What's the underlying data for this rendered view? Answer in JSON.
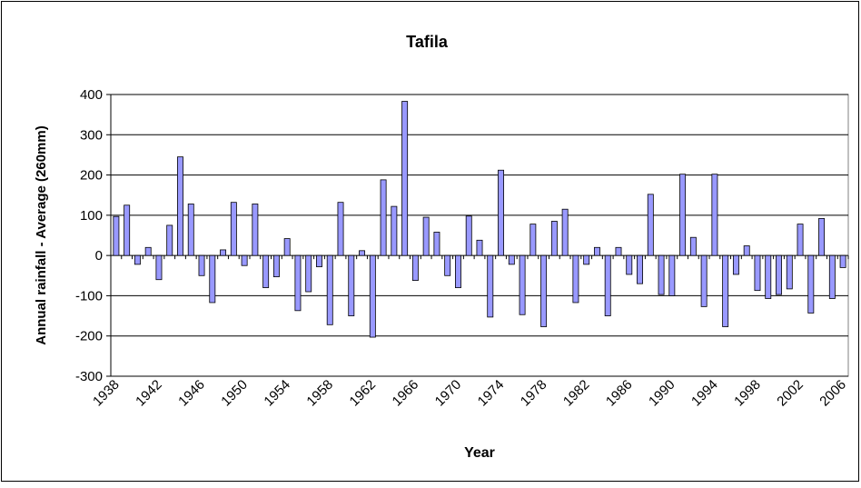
{
  "chart_data": {
    "type": "bar",
    "title": "Tafila",
    "x_label": "Year",
    "y_label": "Annual rainfall - Average (260mm)",
    "categories": [
      "1938",
      null,
      null,
      null,
      "1942",
      null,
      null,
      null,
      "1946",
      null,
      null,
      null,
      "1950",
      null,
      null,
      null,
      "1954",
      null,
      null,
      null,
      "1958",
      null,
      null,
      null,
      "1962",
      null,
      null,
      null,
      "1966",
      null,
      null,
      null,
      "1970",
      null,
      null,
      null,
      "1974",
      null,
      null,
      null,
      "1978",
      null,
      null,
      null,
      "1982",
      null,
      null,
      null,
      "1986",
      null,
      null,
      null,
      "1990",
      null,
      null,
      null,
      "1994",
      null,
      null,
      null,
      "1998",
      null,
      null,
      null,
      "2002",
      null,
      null,
      null,
      "2006"
    ],
    "values": [
      97,
      125,
      -22,
      20,
      -60,
      75,
      245,
      128,
      -50,
      -117,
      14,
      132,
      -25,
      128,
      -80,
      -53,
      42,
      -137,
      -90,
      -28,
      -172,
      132,
      -150,
      12,
      -203,
      188,
      122,
      383,
      -62,
      95,
      58,
      -50,
      -80,
      98,
      38,
      -153,
      212,
      -22,
      -147,
      78,
      -177,
      85,
      115,
      -117,
      -22,
      20,
      -150,
      20,
      -47,
      -70,
      152,
      -97,
      -100,
      202,
      45,
      -127,
      202,
      -177,
      -47,
      24,
      -87,
      -107,
      -97,
      -83,
      78,
      -143,
      92,
      -107,
      -30
    ],
    "color": "#9999ff",
    "ylim": [
      -300,
      400
    ],
    "yticks": [
      -300,
      -200,
      -100,
      0,
      100,
      200,
      300,
      400
    ],
    "grid": true
  }
}
